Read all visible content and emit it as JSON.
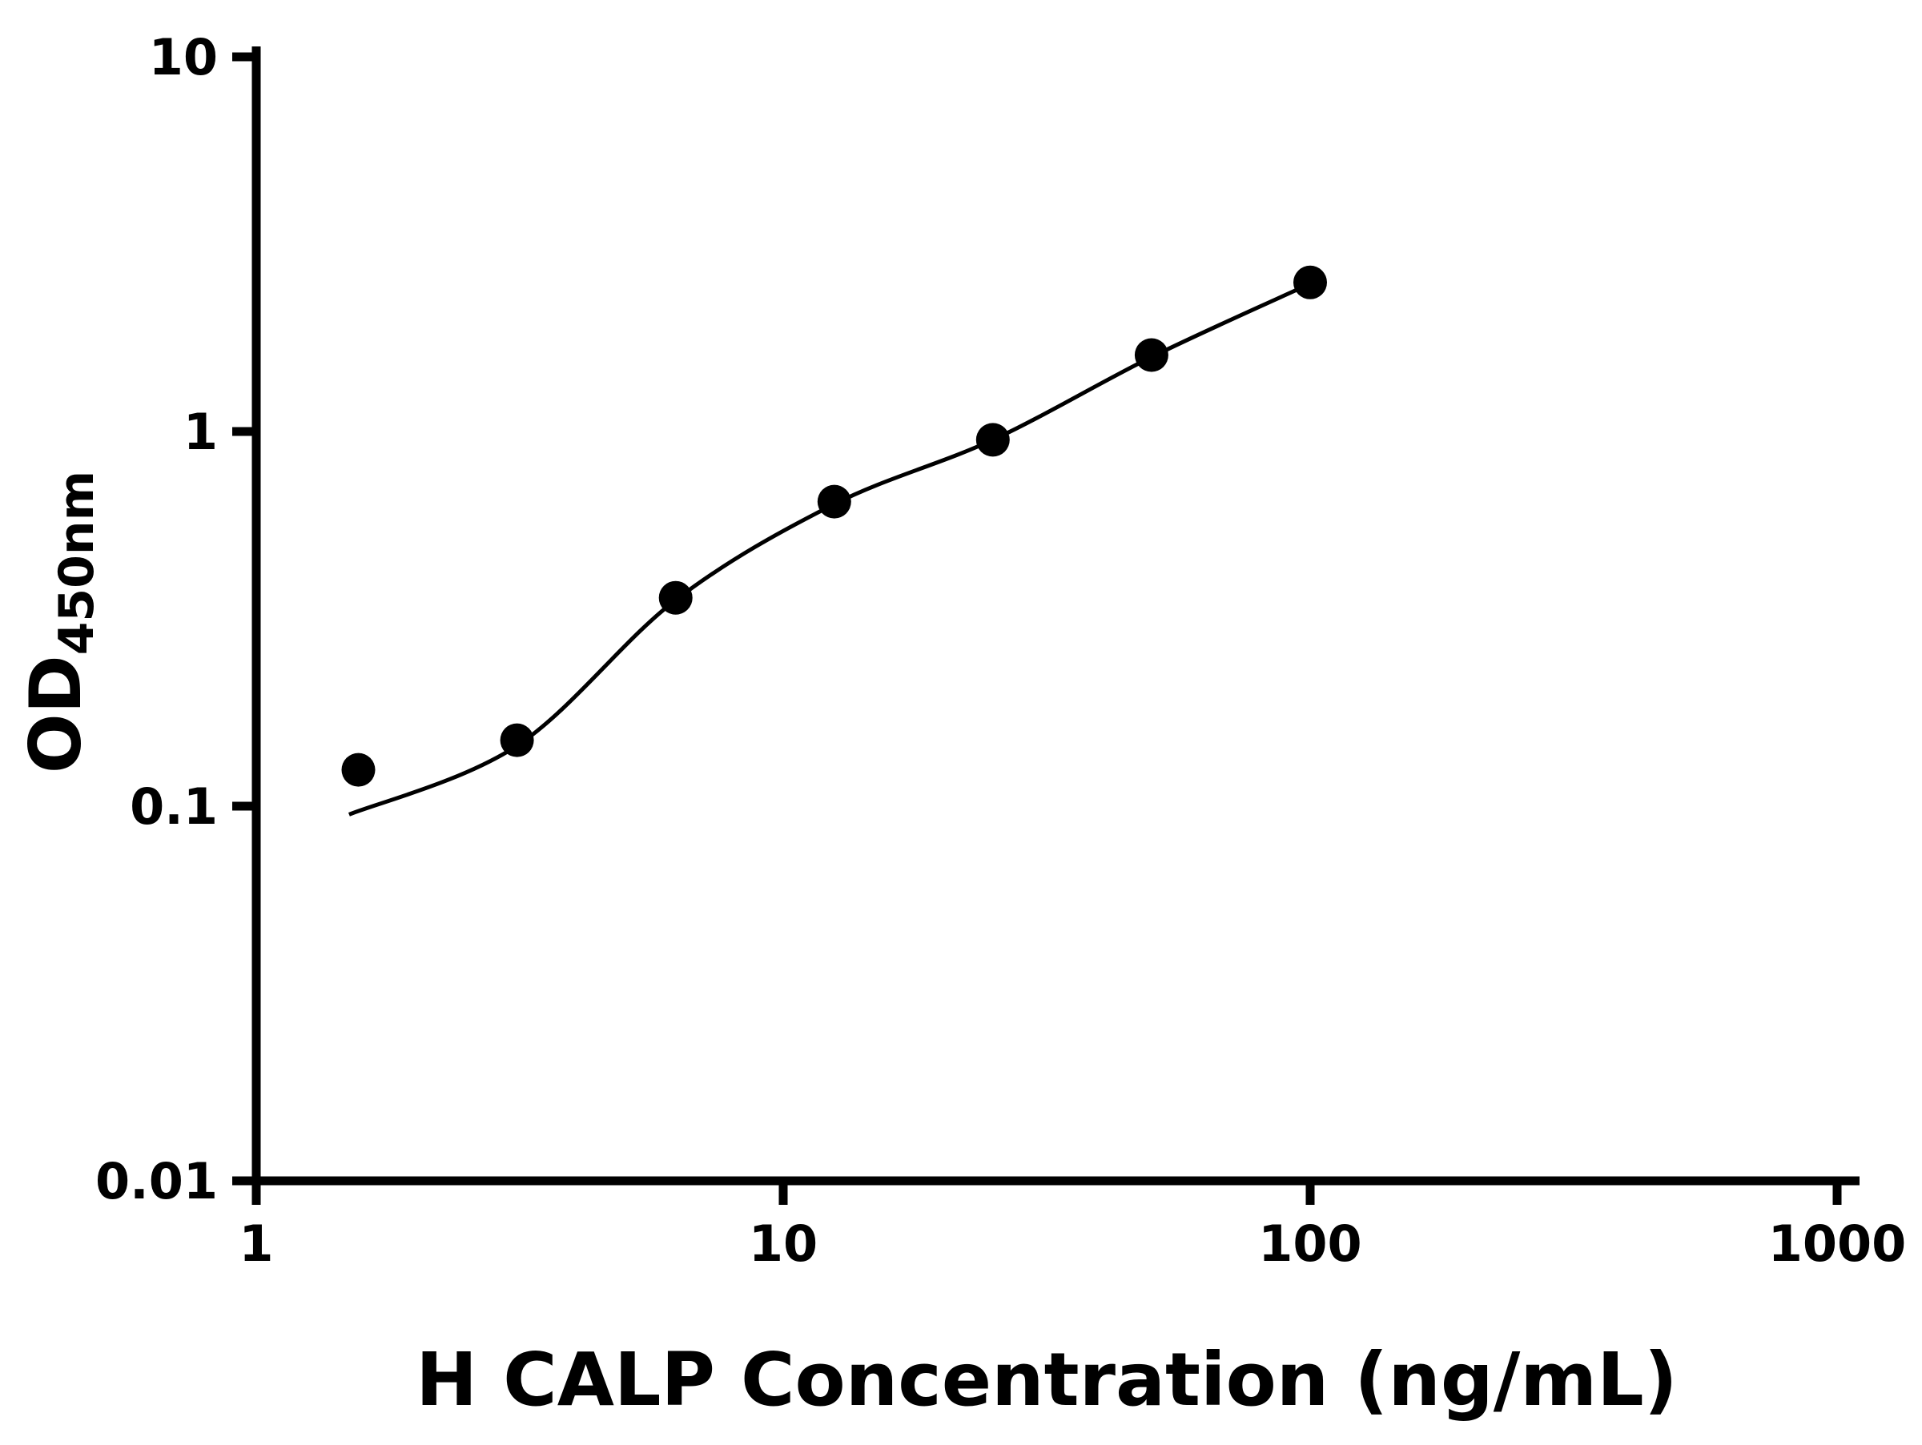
{
  "chart_data": {
    "type": "scatter",
    "title": "",
    "xlabel": "H CALP Concentration (ng/mL)",
    "ylabel_main": "OD",
    "ylabel_sub": "450nm",
    "x_scale": "log",
    "y_scale": "log",
    "xlim": [
      1,
      1000
    ],
    "ylim": [
      0.01,
      10
    ],
    "x_ticks": [
      1,
      10,
      100,
      1000
    ],
    "x_tick_labels": [
      "1",
      "10",
      "100",
      "1000"
    ],
    "y_ticks": [
      0.01,
      0.1,
      1,
      10
    ],
    "y_tick_labels": [
      "0.01",
      "0.1",
      "1",
      "10"
    ],
    "grid": false,
    "legend": "none",
    "background_color": "#ffffff",
    "axis_color": "#000000",
    "marker_color": "#000000",
    "line_color": "#000000",
    "series": [
      {
        "name": "H CALP standard curve points",
        "x": [
          1.5625,
          3.125,
          6.25,
          12.5,
          25,
          50,
          100
        ],
        "y": [
          0.125,
          0.15,
          0.36,
          0.65,
          0.95,
          1.6,
          2.5
        ]
      }
    ],
    "trend_curve": {
      "name": "fitted standard curve",
      "x": [
        1.5,
        3.125,
        6.25,
        12.5,
        25,
        50,
        100
      ],
      "y": [
        0.095,
        0.145,
        0.355,
        0.64,
        0.95,
        1.58,
        2.48
      ]
    }
  }
}
